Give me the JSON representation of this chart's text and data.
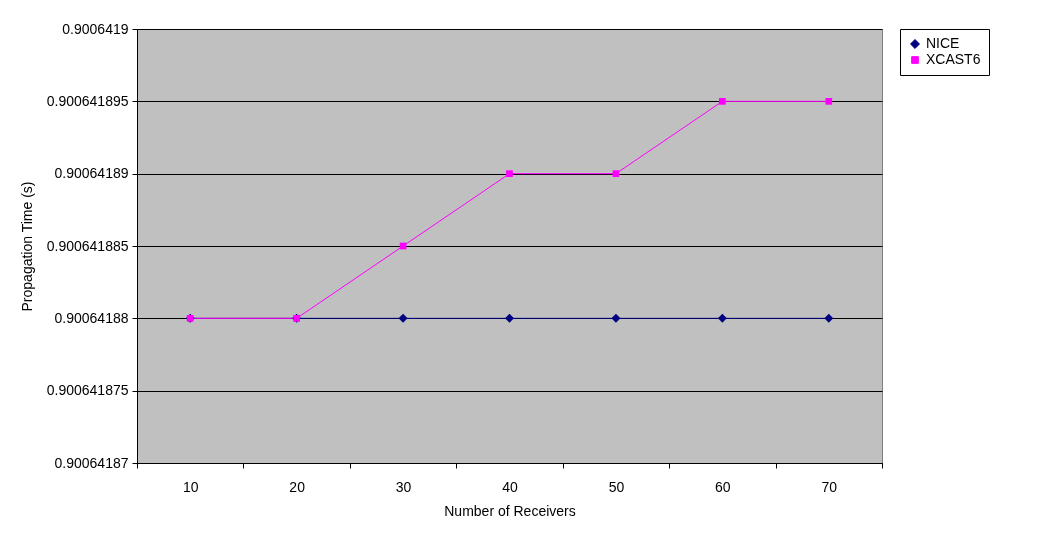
{
  "chart_data": {
    "type": "line",
    "xlabel": "Number of Receivers",
    "ylabel": "Propagation Time (s)",
    "categories": [
      "10",
      "20",
      "30",
      "40",
      "50",
      "60",
      "70"
    ],
    "series": [
      {
        "name": "NICE",
        "color": "#000080",
        "marker": "diamond",
        "values": [
          0.90064188,
          0.90064188,
          0.90064188,
          0.90064188,
          0.90064188,
          0.90064188,
          0.90064188
        ]
      },
      {
        "name": "XCAST6",
        "color": "#ff00ff",
        "marker": "square",
        "values": [
          0.90064188,
          0.90064188,
          0.900641885,
          0.90064189,
          0.90064189,
          0.900641895,
          0.900641895
        ]
      }
    ],
    "ylim": [
      0.90064187,
      0.9006419
    ],
    "yticks": [
      0.90064187,
      0.900641875,
      0.90064188,
      0.900641885,
      0.90064189,
      0.900641895,
      0.9006419
    ],
    "grid": "y",
    "legend": "right"
  }
}
